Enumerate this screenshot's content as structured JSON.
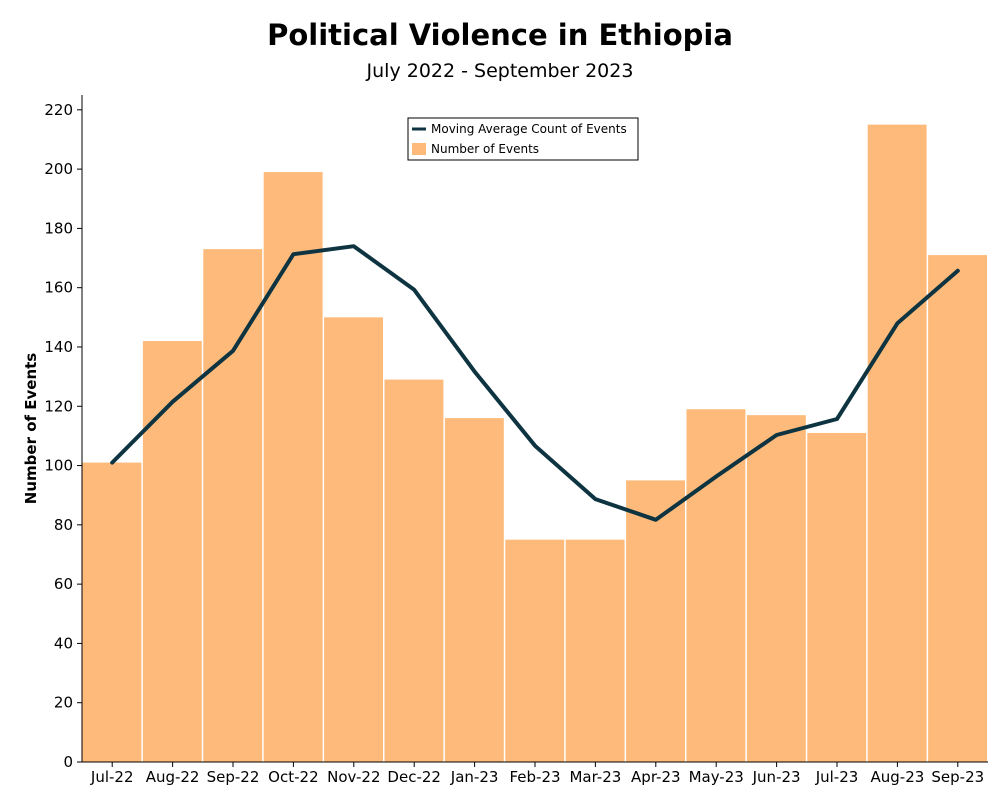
{
  "chart_data": {
    "type": "bar",
    "title": "Political Violence in Ethiopia",
    "subtitle": "July 2022 - September 2023",
    "xlabel": "",
    "ylabel": "Number of Events",
    "ylim": [
      0,
      225
    ],
    "yticks": [
      0,
      20,
      40,
      60,
      80,
      100,
      120,
      140,
      160,
      180,
      200,
      220
    ],
    "grid": false,
    "legend_position": "top-center",
    "categories": [
      "Jul-22",
      "Aug-22",
      "Sep-22",
      "Oct-22",
      "Nov-22",
      "Dec-22",
      "Jan-23",
      "Feb-23",
      "Mar-23",
      "Apr-23",
      "May-23",
      "Jun-23",
      "Jul-23",
      "Aug-23",
      "Sep-23"
    ],
    "series": [
      {
        "name": "Number of Events",
        "kind": "bar",
        "color": "#FDBA7A",
        "values": [
          101,
          142,
          173,
          199,
          150,
          129,
          116,
          75,
          75,
          95,
          119,
          117,
          111,
          215,
          171
        ]
      },
      {
        "name": "Moving Average Count of Events",
        "kind": "line",
        "color": "#0D3440",
        "values": [
          101,
          121.5,
          138.7,
          171.3,
          174,
          159.3,
          131.7,
          106.7,
          88.7,
          81.7,
          96.3,
          110.3,
          115.7,
          148,
          165.7
        ]
      }
    ]
  }
}
